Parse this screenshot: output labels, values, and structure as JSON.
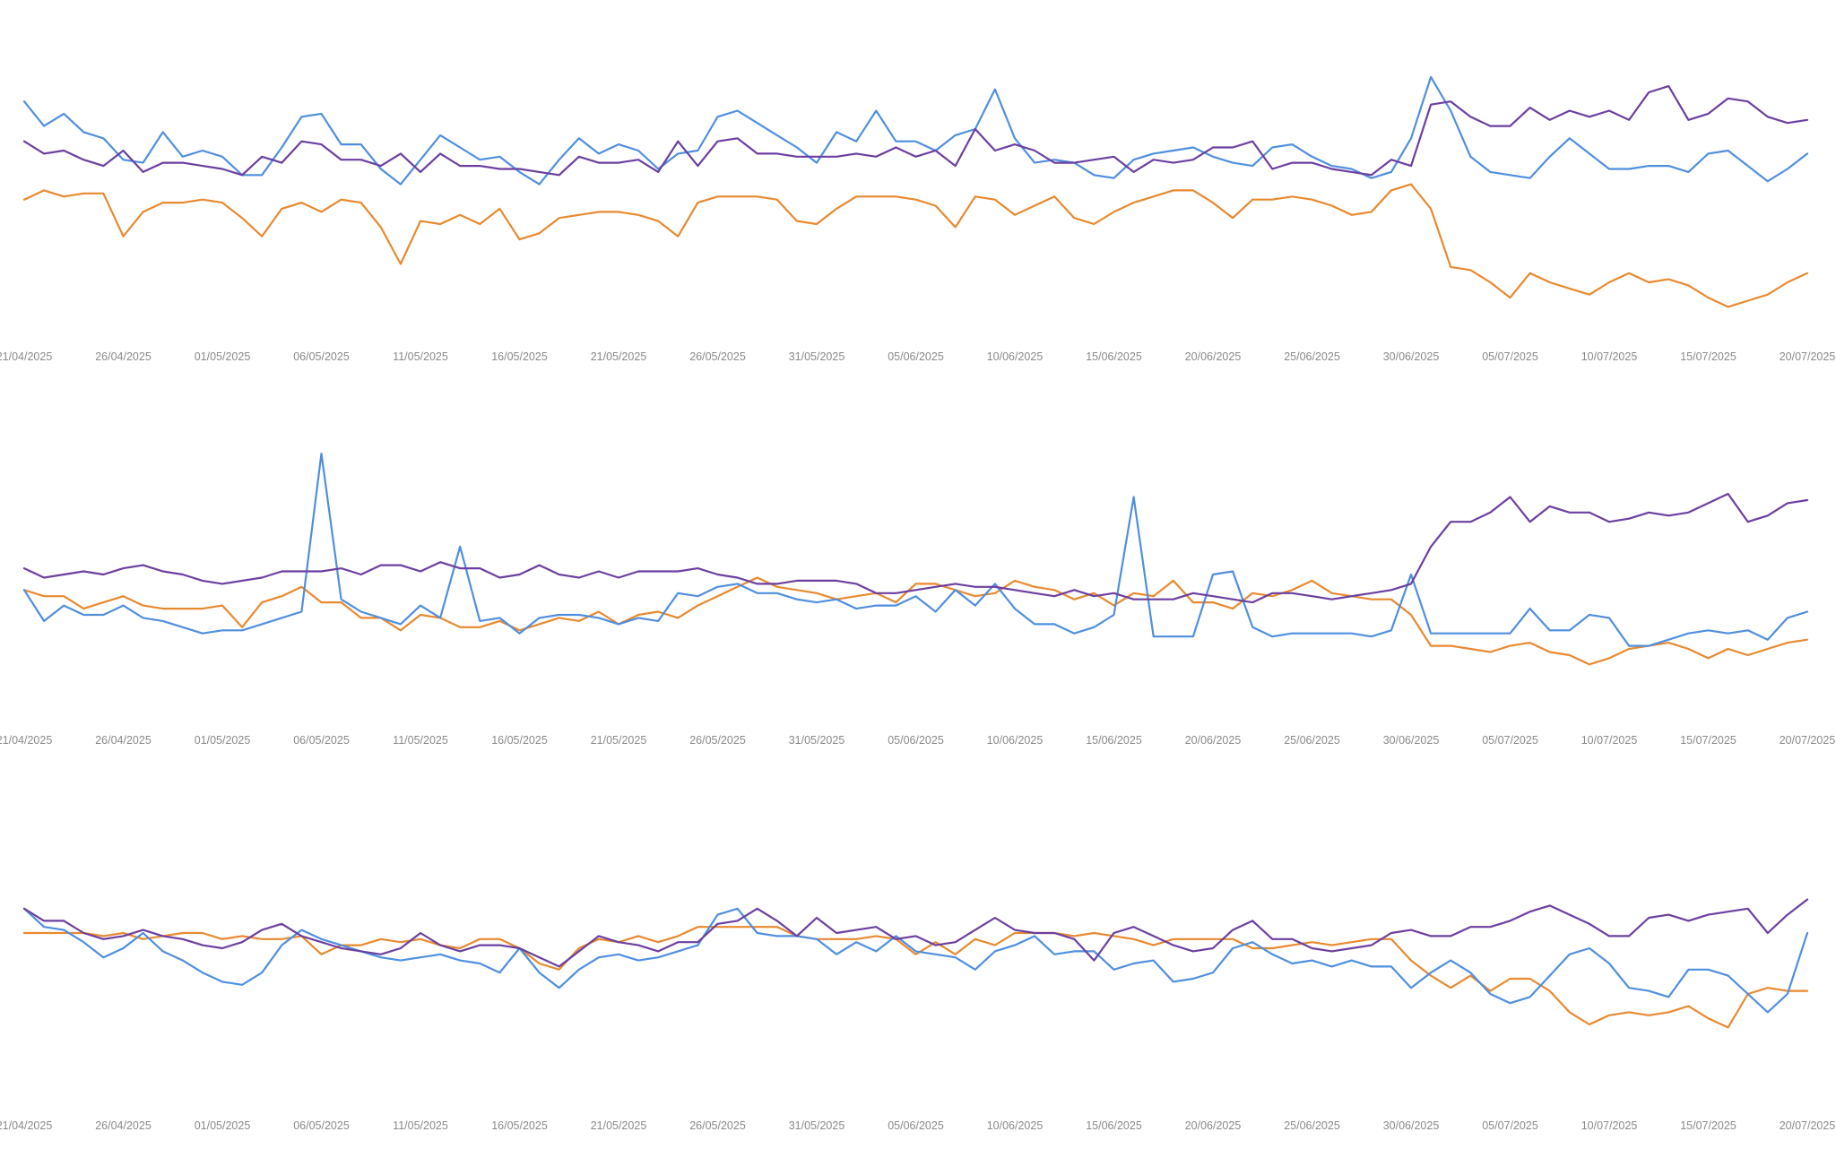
{
  "colors": {
    "orange": "#e8892f",
    "blue": "#4f8fde",
    "purple": "#6b3fa0",
    "tick_text": "#8a8a8a"
  },
  "chart_data": [
    {
      "type": "line",
      "grid": false,
      "legend": "none",
      "title": "",
      "xlabel": "",
      "ylabel": "",
      "x_start": "21/04/2025",
      "x_end": "20/07/2025",
      "x_ticks": [
        "21/04/2025",
        "26/04/2025",
        "01/05/2025",
        "06/05/2025",
        "11/05/2025",
        "16/05/2025",
        "21/05/2025",
        "26/05/2025",
        "31/05/2025",
        "05/06/2025",
        "10/06/2025",
        "15/06/2025",
        "20/06/2025",
        "25/06/2025",
        "30/06/2025",
        "05/07/2025",
        "10/07/2025",
        "15/07/2025",
        "20/07/2025"
      ],
      "ylim": [
        0,
        100
      ],
      "series": [
        {
          "color": "orange",
          "values": [
            46,
            49,
            47,
            48,
            48,
            34,
            42,
            45,
            45,
            46,
            45,
            40,
            34,
            43,
            45,
            42,
            46,
            45,
            37,
            25,
            39,
            38,
            41,
            38,
            43,
            33,
            35,
            40,
            41,
            42,
            42,
            41,
            39,
            34,
            45,
            47,
            47,
            47,
            46,
            39,
            38,
            43,
            47,
            47,
            47,
            46,
            44,
            37,
            47,
            46,
            41,
            44,
            47,
            40,
            38,
            42,
            45,
            47,
            49,
            49,
            45,
            40,
            46,
            46,
            47,
            46,
            44,
            41,
            42,
            49,
            51,
            43,
            24,
            23,
            19,
            14,
            22,
            19,
            17,
            15,
            19,
            22,
            19,
            20,
            18,
            14,
            11,
            13,
            15,
            19,
            22
          ]
        },
        {
          "color": "blue",
          "values": [
            78,
            70,
            74,
            68,
            66,
            59,
            58,
            68,
            60,
            62,
            60,
            54,
            54,
            63,
            73,
            74,
            64,
            64,
            56,
            51,
            59,
            67,
            63,
            59,
            60,
            55,
            51,
            59,
            66,
            61,
            64,
            62,
            56,
            61,
            62,
            73,
            75,
            71,
            67,
            63,
            58,
            68,
            65,
            75,
            65,
            65,
            62,
            67,
            69,
            82,
            66,
            58,
            59,
            58,
            54,
            53,
            59,
            61,
            62,
            63,
            60,
            58,
            57,
            63,
            64,
            60,
            57,
            56,
            53,
            55,
            66,
            86,
            75,
            60,
            55,
            54,
            53,
            60,
            66,
            61,
            56,
            56,
            57,
            57,
            55,
            61,
            62,
            57,
            52,
            56,
            61
          ]
        },
        {
          "color": "purple",
          "values": [
            65,
            61,
            62,
            59,
            57,
            62,
            55,
            58,
            58,
            57,
            56,
            54,
            60,
            58,
            65,
            64,
            59,
            59,
            57,
            61,
            55,
            61,
            57,
            57,
            56,
            56,
            55,
            54,
            60,
            58,
            58,
            59,
            55,
            65,
            57,
            65,
            66,
            61,
            61,
            60,
            60,
            60,
            61,
            60,
            63,
            60,
            62,
            57,
            69,
            62,
            64,
            62,
            58,
            58,
            59,
            60,
            55,
            59,
            58,
            59,
            63,
            63,
            65,
            56,
            58,
            58,
            56,
            55,
            54,
            59,
            57,
            77,
            78,
            73,
            70,
            70,
            76,
            72,
            75,
            73,
            75,
            72,
            81,
            83,
            72,
            74,
            79,
            78,
            73,
            71,
            72
          ]
        }
      ]
    },
    {
      "type": "line",
      "grid": false,
      "legend": "none",
      "title": "",
      "xlabel": "",
      "ylabel": "",
      "x_start": "21/04/2025",
      "x_end": "20/07/2025",
      "x_ticks": [
        "21/04/2025",
        "26/04/2025",
        "01/05/2025",
        "06/05/2025",
        "11/05/2025",
        "16/05/2025",
        "21/05/2025",
        "26/05/2025",
        "31/05/2025",
        "05/06/2025",
        "10/06/2025",
        "15/06/2025",
        "20/06/2025",
        "25/06/2025",
        "30/06/2025",
        "05/07/2025",
        "10/07/2025",
        "15/07/2025",
        "20/07/2025"
      ],
      "ylim": [
        0,
        100
      ],
      "series": [
        {
          "color": "orange",
          "values": [
            45,
            43,
            43,
            39,
            41,
            43,
            40,
            39,
            39,
            39,
            40,
            33,
            41,
            43,
            46,
            41,
            41,
            36,
            36,
            32,
            37,
            36,
            33,
            33,
            35,
            32,
            34,
            36,
            35,
            38,
            34,
            37,
            38,
            36,
            40,
            43,
            46,
            49,
            46,
            45,
            44,
            42,
            43,
            44,
            41,
            47,
            47,
            45,
            43,
            44,
            48,
            46,
            45,
            42,
            44,
            40,
            44,
            43,
            48,
            41,
            41,
            39,
            44,
            43,
            45,
            48,
            44,
            43,
            42,
            42,
            37,
            27,
            27,
            26,
            25,
            27,
            28,
            25,
            24,
            21,
            23,
            26,
            27,
            28,
            26,
            23,
            26,
            24,
            26,
            28,
            29
          ]
        },
        {
          "color": "blue",
          "values": [
            45,
            35,
            40,
            37,
            37,
            40,
            36,
            35,
            33,
            31,
            32,
            32,
            34,
            36,
            38,
            89,
            42,
            38,
            36,
            34,
            40,
            36,
            59,
            35,
            36,
            31,
            36,
            37,
            37,
            36,
            34,
            36,
            35,
            44,
            43,
            46,
            47,
            44,
            44,
            42,
            41,
            42,
            39,
            40,
            40,
            43,
            38,
            45,
            40,
            47,
            39,
            34,
            34,
            31,
            33,
            37,
            75,
            30,
            30,
            30,
            50,
            51,
            33,
            30,
            31,
            31,
            31,
            31,
            30,
            32,
            50,
            31,
            31,
            31,
            31,
            31,
            39,
            32,
            32,
            37,
            36,
            27,
            27,
            29,
            31,
            32,
            31,
            32,
            29,
            36,
            38
          ]
        },
        {
          "color": "purple",
          "values": [
            52,
            49,
            50,
            51,
            50,
            52,
            53,
            51,
            50,
            48,
            47,
            48,
            49,
            51,
            51,
            51,
            52,
            50,
            53,
            53,
            51,
            54,
            52,
            52,
            49,
            50,
            53,
            50,
            49,
            51,
            49,
            51,
            51,
            51,
            52,
            50,
            49,
            47,
            47,
            48,
            48,
            48,
            47,
            44,
            44,
            45,
            46,
            47,
            46,
            46,
            45,
            44,
            43,
            45,
            43,
            44,
            42,
            42,
            42,
            44,
            43,
            42,
            41,
            44,
            44,
            43,
            42,
            43,
            44,
            45,
            47,
            59,
            67,
            67,
            70,
            75,
            67,
            72,
            70,
            70,
            67,
            68,
            70,
            69,
            70,
            73,
            76,
            67,
            69,
            73,
            74
          ]
        }
      ]
    },
    {
      "type": "line",
      "grid": false,
      "legend": "none",
      "title": "",
      "xlabel": "",
      "ylabel": "",
      "x_start": "21/04/2025",
      "x_end": "20/07/2025",
      "x_ticks": [
        "21/04/2025",
        "26/04/2025",
        "01/05/2025",
        "06/05/2025",
        "11/05/2025",
        "16/05/2025",
        "21/05/2025",
        "26/05/2025",
        "31/05/2025",
        "05/06/2025",
        "10/06/2025",
        "15/06/2025",
        "20/06/2025",
        "25/06/2025",
        "30/06/2025",
        "05/07/2025",
        "10/07/2025",
        "15/07/2025",
        "20/07/2025"
      ],
      "ylim": [
        0,
        100
      ],
      "series": [
        {
          "color": "orange",
          "values": [
            60,
            60,
            60,
            60,
            59,
            60,
            58,
            59,
            60,
            60,
            58,
            59,
            58,
            58,
            59,
            53,
            56,
            56,
            58,
            57,
            58,
            56,
            55,
            58,
            58,
            55,
            50,
            48,
            55,
            58,
            57,
            59,
            57,
            59,
            62,
            62,
            62,
            62,
            62,
            59,
            58,
            58,
            58,
            59,
            58,
            53,
            57,
            53,
            58,
            56,
            60,
            60,
            60,
            59,
            60,
            59,
            58,
            56,
            58,
            58,
            58,
            58,
            55,
            55,
            56,
            57,
            56,
            57,
            58,
            58,
            51,
            46,
            42,
            46,
            41,
            45,
            45,
            41,
            34,
            30,
            33,
            34,
            33,
            34,
            36,
            32,
            29,
            40,
            42,
            41,
            41
          ]
        },
        {
          "color": "blue",
          "values": [
            68,
            62,
            61,
            57,
            52,
            55,
            60,
            54,
            51,
            47,
            44,
            43,
            47,
            56,
            61,
            58,
            56,
            54,
            52,
            51,
            52,
            53,
            51,
            50,
            47,
            55,
            47,
            42,
            48,
            52,
            53,
            51,
            52,
            54,
            56,
            66,
            68,
            60,
            59,
            59,
            58,
            53,
            57,
            54,
            59,
            54,
            53,
            52,
            48,
            54,
            56,
            59,
            53,
            54,
            54,
            48,
            50,
            51,
            44,
            45,
            47,
            55,
            57,
            53,
            50,
            51,
            49,
            51,
            49,
            49,
            42,
            47,
            51,
            47,
            40,
            37,
            39,
            46,
            53,
            55,
            50,
            42,
            41,
            39,
            48,
            48,
            46,
            40,
            34,
            40,
            60
          ]
        },
        {
          "color": "purple",
          "values": [
            68,
            64,
            64,
            60,
            58,
            59,
            61,
            59,
            58,
            56,
            55,
            57,
            61,
            63,
            59,
            57,
            55,
            54,
            53,
            55,
            60,
            56,
            54,
            56,
            56,
            55,
            52,
            49,
            54,
            59,
            57,
            56,
            54,
            57,
            57,
            63,
            64,
            68,
            64,
            59,
            65,
            60,
            61,
            62,
            58,
            59,
            56,
            57,
            61,
            65,
            61,
            60,
            60,
            58,
            51,
            60,
            62,
            59,
            56,
            54,
            55,
            61,
            64,
            58,
            58,
            55,
            54,
            55,
            56,
            60,
            61,
            59,
            59,
            62,
            62,
            64,
            67,
            69,
            66,
            63,
            59,
            59,
            65,
            66,
            64,
            66,
            67,
            68,
            60,
            66,
            71
          ]
        }
      ]
    }
  ]
}
